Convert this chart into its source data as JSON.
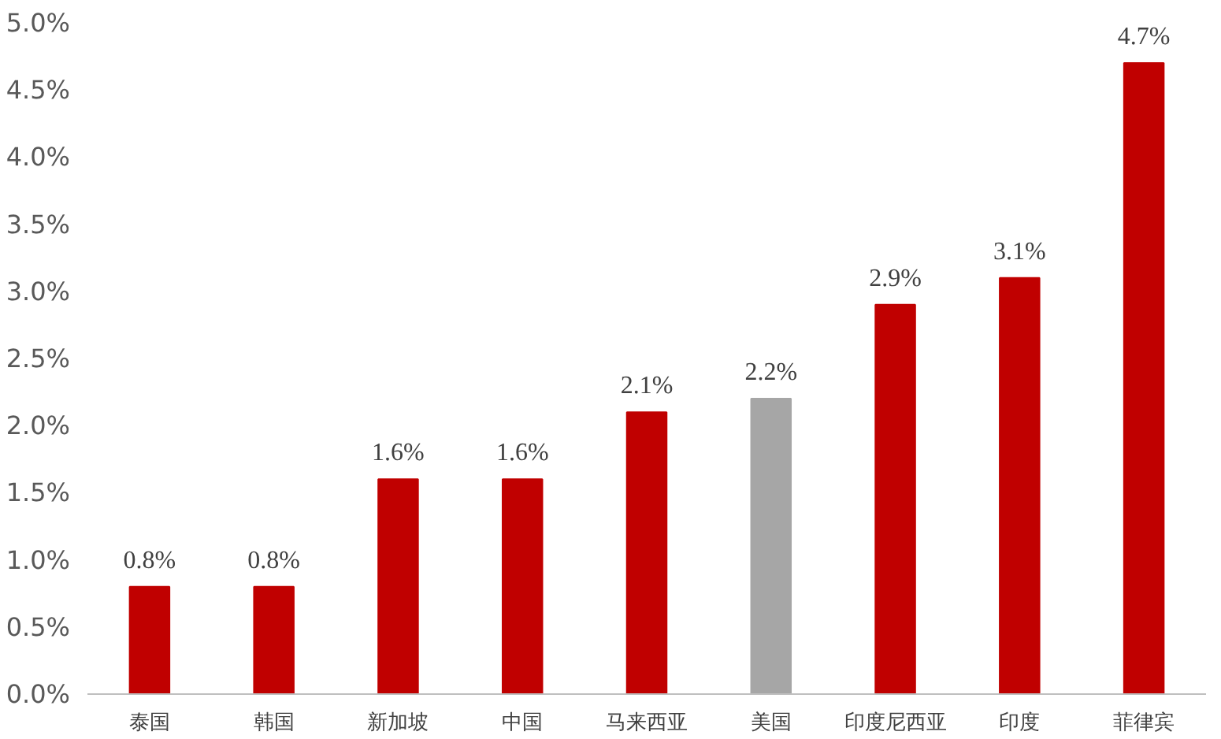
{
  "chart_data": {
    "type": "bar",
    "categories": [
      "泰国",
      "韩国",
      "新加坡",
      "中国",
      "马来西亚",
      "美国",
      "印度尼西亚",
      "印度",
      "菲律宾"
    ],
    "values": [
      0.8,
      0.8,
      1.6,
      1.6,
      2.1,
      2.2,
      2.9,
      3.1,
      4.7
    ],
    "colors": [
      "#c00000",
      "#c00000",
      "#c00000",
      "#c00000",
      "#c00000",
      "#a6a6a6",
      "#c00000",
      "#c00000",
      "#c00000"
    ],
    "value_labels": [
      "0.8%",
      "0.8%",
      "1.6%",
      "1.6%",
      "2.1%",
      "2.2%",
      "2.9%",
      "3.1%",
      "4.7%"
    ],
    "ylim": [
      0,
      5
    ],
    "yticks": [
      {
        "value": 0,
        "label": "0.0%"
      },
      {
        "value": 0.5,
        "label": "0.5%"
      },
      {
        "value": 1,
        "label": "1.0%"
      },
      {
        "value": 1.5,
        "label": "1.5%"
      },
      {
        "value": 2,
        "label": "2.0%"
      },
      {
        "value": 2.5,
        "label": "2.5%"
      },
      {
        "value": 3,
        "label": "3.0%"
      },
      {
        "value": 3.5,
        "label": "3.5%"
      },
      {
        "value": 4,
        "label": "4.0%"
      },
      {
        "value": 4.5,
        "label": "4.5%"
      },
      {
        "value": 5,
        "label": "5.0%"
      }
    ],
    "grid": false
  }
}
